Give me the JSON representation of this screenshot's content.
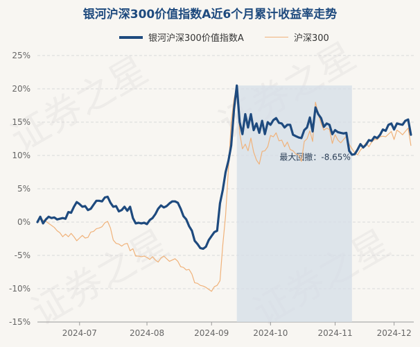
{
  "title": "银河沪深300价值指数A近6个月累计收益率走势",
  "watermark": "证券之星",
  "colors": {
    "fund": "#1e4a7e",
    "index": "#f0b27a",
    "drawdown": "#d4dde7",
    "grid": "#d9d9d9",
    "axis_text": "#666666",
    "background": "#f8f6f2"
  },
  "chart_data": {
    "type": "line",
    "title": "银河沪深300价值指数A近6个月累计收益率走势",
    "ylim": [
      -15,
      25
    ],
    "y_ticks": [
      "25%",
      "20%",
      "15%",
      "10%",
      "5%",
      "0%",
      "-5%",
      "-10%",
      "-15%"
    ],
    "x_tick_labels": [
      "2024-07",
      "2024-08",
      "2024-09",
      "2024-10",
      "2024-11",
      "2024-12"
    ],
    "x_domain": [
      0,
      134
    ],
    "x_ticks": [
      15,
      39,
      62,
      83,
      106,
      127
    ],
    "legend_position": "top",
    "grid": true,
    "series": [
      {
        "name": "银河沪深300价值指数A",
        "values": [
          0.0,
          0.8,
          -0.2,
          0.4,
          0.8,
          0.6,
          0.7,
          0.4,
          0.5,
          0.6,
          0.5,
          1.5,
          1.4,
          2.3,
          3.0,
          2.7,
          2.3,
          2.4,
          1.8,
          2.0,
          2.6,
          3.2,
          3.2,
          3.1,
          3.7,
          3.8,
          2.9,
          2.3,
          2.4,
          1.6,
          1.8,
          2.3,
          1.7,
          2.3,
          0.6,
          -0.2,
          -0.1,
          -0.2,
          -0.1,
          -0.3,
          0.3,
          0.6,
          1.2,
          2.0,
          2.5,
          2.2,
          2.4,
          2.8,
          3.1,
          3.1,
          2.9,
          2.0,
          0.9,
          0.4,
          -0.6,
          -1.3,
          -2.8,
          -3.3,
          -3.9,
          -4.0,
          -3.7,
          -2.7,
          -2.1,
          -1.5,
          -1.3,
          2.8,
          4.8,
          7.5,
          9.2,
          11.5,
          17.0,
          20.5,
          15.0,
          13.2,
          16.2,
          14.2,
          16.2,
          13.8,
          14.8,
          13.4,
          15.2,
          13.2,
          15.0,
          14.6,
          15.3,
          15.6,
          14.9,
          14.8,
          14.2,
          14.6,
          14.6,
          13.1,
          12.9,
          12.7,
          12.6,
          13.8,
          14.2,
          15.7,
          13.6,
          17.2,
          16.2,
          15.6,
          14.3,
          14.8,
          14.6,
          13.2,
          13.8,
          13.5,
          13.4,
          13.3,
          13.4,
          10.7,
          10.1,
          10.2,
          10.9,
          11.7,
          11.2,
          11.6,
          12.3,
          12.2,
          12.8,
          12.6,
          13.1,
          13.9,
          13.7,
          14.6,
          14.8,
          13.9,
          14.8,
          14.7,
          14.6,
          15.2,
          15.4,
          13.1
        ]
      },
      {
        "name": "沪深300",
        "values": [
          0.0,
          0.6,
          0.3,
          0.1,
          -0.2,
          -0.5,
          -0.8,
          -1.3,
          -1.6,
          -2.2,
          -1.8,
          -2.2,
          -1.7,
          -2.2,
          -2.8,
          -2.4,
          -2.0,
          -2.4,
          -2.3,
          -1.5,
          -1.4,
          -1.0,
          -0.9,
          -0.7,
          -0.1,
          0.1,
          -0.9,
          -2.7,
          -3.2,
          -3.3,
          -3.6,
          -3.3,
          -3.2,
          -4.3,
          -4.0,
          -5.1,
          -5.1,
          -5.2,
          -5.1,
          -5.3,
          -5.6,
          -5.2,
          -5.7,
          -6.0,
          -5.4,
          -5.1,
          -5.5,
          -5.9,
          -5.7,
          -5.5,
          -5.9,
          -6.7,
          -6.8,
          -7.2,
          -7.1,
          -7.8,
          -9.1,
          -9.2,
          -9.5,
          -9.6,
          -9.8,
          -10.1,
          -10.4,
          -9.7,
          -9.5,
          -8.8,
          -3.5,
          1.0,
          8.0,
          15.0,
          18.5,
          20.3,
          13.4,
          11.0,
          11.7,
          10.7,
          12.6,
          10.5,
          9.3,
          8.7,
          10.6,
          10.7,
          11.3,
          13.0,
          12.8,
          13.4,
          12.2,
          12.3,
          11.3,
          12.0,
          10.9,
          10.7,
          10.2,
          10.1,
          9.1,
          12.1,
          12.5,
          13.7,
          12.1,
          18.0,
          16.2,
          14.8,
          13.8,
          14.1,
          13.9,
          11.8,
          13.1,
          12.3,
          11.9,
          12.4,
          12.9,
          11.7,
          11.0,
          10.4,
          10.1,
          10.8,
          11.3,
          11.9,
          11.3,
          12.0,
          12.4,
          12.4,
          12.8,
          12.9,
          12.8,
          13.2,
          13.6,
          12.4,
          13.8,
          13.5,
          13.1,
          13.6,
          14.1,
          11.5
        ]
      }
    ],
    "annotations": [
      {
        "text": "最大回撤：-8.65%",
        "x_start": 71,
        "x_end": 112
      }
    ]
  }
}
